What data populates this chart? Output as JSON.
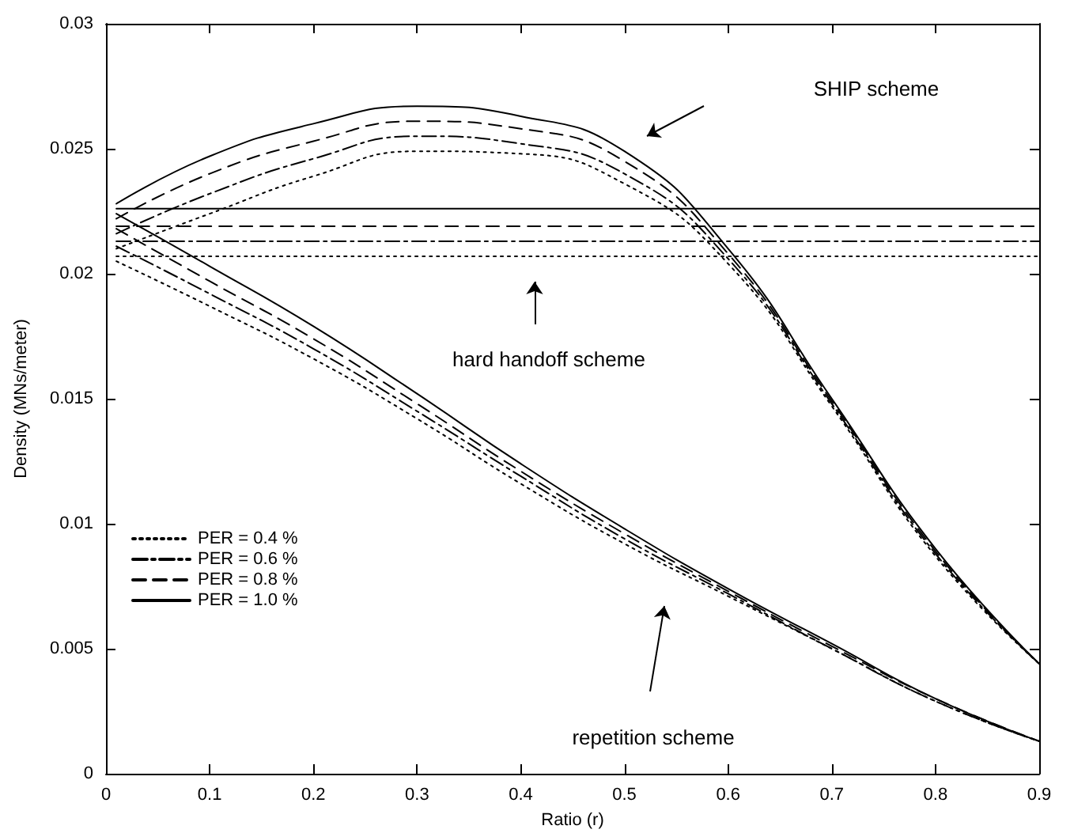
{
  "chart_data": {
    "type": "line",
    "xlabel": "Ratio (r)",
    "ylabel": "Density (MNs/meter)",
    "xlim": [
      0,
      0.9
    ],
    "xticks": [
      0,
      0.1,
      0.2,
      0.3,
      0.4,
      0.5,
      0.6,
      0.7,
      0.8,
      0.9
    ],
    "ylim": [
      0,
      0.03
    ],
    "yticks": [
      0,
      0.005,
      0.01,
      0.015,
      0.02,
      0.025,
      0.03
    ],
    "grid": false,
    "legend": "left",
    "marker": "none",
    "x": [
      0.01,
      0.1,
      0.2,
      0.3,
      0.4,
      0.5,
      0.6,
      0.7,
      0.8,
      0.9
    ],
    "series": [
      {
        "name": "PER = 0.4 %",
        "color": "#000000",
        "line_style": "dotted",
        "values": [
          0.021,
          0.0224,
          0.0239,
          0.0249,
          0.0248,
          0.0236,
          0.0204,
          0.0147,
          0.0087,
          0.0044
        ]
      },
      {
        "name": "PER = 0.6 %",
        "color": "#000000",
        "line_style": "dashdot",
        "values": [
          0.0216,
          0.0232,
          0.0246,
          0.0255,
          0.0252,
          0.024,
          0.0206,
          0.0148,
          0.0088,
          0.0044
        ]
      },
      {
        "name": "PER = 0.8 %",
        "color": "#000000",
        "line_style": "dashed",
        "values": [
          0.0222,
          0.024,
          0.0253,
          0.0261,
          0.0258,
          0.0245,
          0.0208,
          0.0149,
          0.0089,
          0.0044
        ]
      },
      {
        "name": "PER = 1.0 %",
        "color": "#000000",
        "line_style": "solid",
        "values": [
          0.0228,
          0.0247,
          0.026,
          0.0267,
          0.0263,
          0.0249,
          0.021,
          0.015,
          0.009,
          0.0044
        ]
      },
      {
        "color": "#000000",
        "line_style": "dotted",
        "values": [
          0.0207,
          0.0207,
          0.0207,
          0.0207,
          0.0207,
          0.0207,
          0.0207,
          0.0207,
          0.0207,
          0.0207
        ]
      },
      {
        "color": "#000000",
        "line_style": "dashdot",
        "values": [
          0.0213,
          0.0213,
          0.0213,
          0.0213,
          0.0213,
          0.0213,
          0.0213,
          0.0213,
          0.0213,
          0.0213
        ]
      },
      {
        "color": "#000000",
        "line_style": "dashed",
        "values": [
          0.0219,
          0.0219,
          0.0219,
          0.0219,
          0.0219,
          0.0219,
          0.0219,
          0.0219,
          0.0219,
          0.0219
        ]
      },
      {
        "color": "#000000",
        "line_style": "solid",
        "values": [
          0.0226,
          0.0226,
          0.0226,
          0.0226,
          0.0226,
          0.0226,
          0.0226,
          0.0226,
          0.0226,
          0.0226
        ]
      },
      {
        "color": "#000000",
        "line_style": "dotted",
        "values": [
          0.0205,
          0.0187,
          0.0166,
          0.0142,
          0.0116,
          0.0092,
          0.0071,
          0.005,
          0.0029,
          0.0013
        ]
      },
      {
        "color": "#000000",
        "line_style": "dashdot",
        "values": [
          0.0211,
          0.0192,
          0.017,
          0.0145,
          0.0119,
          0.0094,
          0.0072,
          0.005,
          0.0029,
          0.0013
        ]
      },
      {
        "color": "#000000",
        "line_style": "dashed",
        "values": [
          0.0218,
          0.0197,
          0.0174,
          0.0148,
          0.0121,
          0.0096,
          0.0073,
          0.0051,
          0.003,
          0.0013
        ]
      },
      {
        "color": "#000000",
        "line_style": "solid",
        "values": [
          0.0224,
          0.0203,
          0.0179,
          0.0152,
          0.0124,
          0.0098,
          0.0074,
          0.0052,
          0.003,
          0.0013
        ]
      }
    ],
    "annotations": [
      "SHIP scheme",
      "hard handoff scheme",
      "repetition scheme"
    ]
  }
}
